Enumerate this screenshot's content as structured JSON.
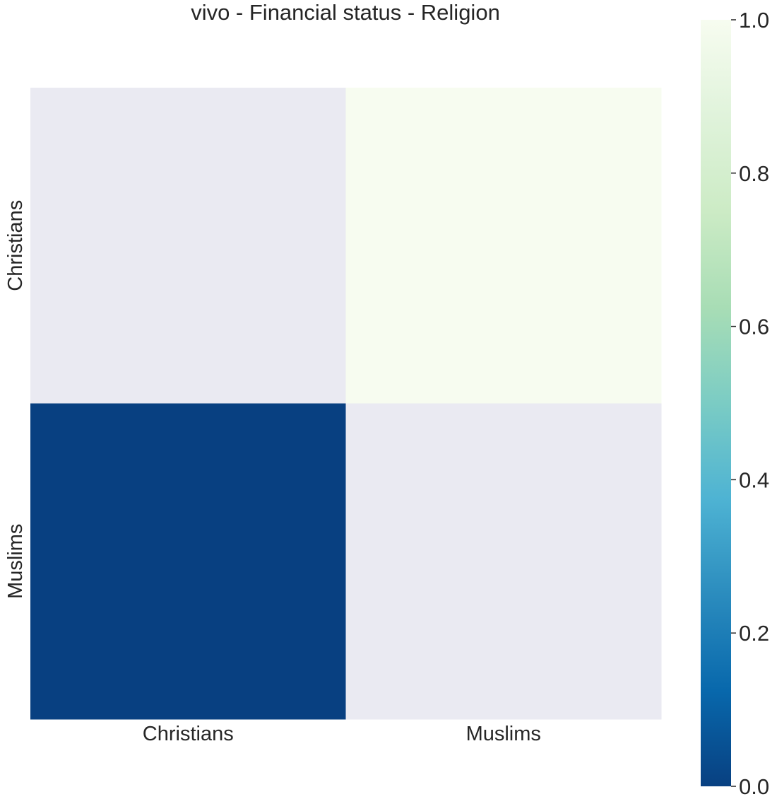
{
  "chart_data": {
    "type": "heatmap",
    "title": "vivo - Financial status - Religion",
    "x_categories": [
      "Christians",
      "Muslims"
    ],
    "y_categories": [
      "Christians",
      "Muslims"
    ],
    "values": [
      [
        null,
        1.0
      ],
      [
        0.0,
        null
      ]
    ],
    "missing_color": "#eaeaf2",
    "colorbar": {
      "min": 0.0,
      "max": 1.0,
      "ticks": [
        0.0,
        0.2,
        0.4,
        0.6,
        0.8,
        1.0
      ],
      "tick_labels": [
        "0.0",
        "0.2",
        "0.4",
        "0.6",
        "0.8",
        "1.0"
      ],
      "colormap": "GnBu_r",
      "colors": [
        "#084081",
        "#0868ac",
        "#2b8cbe",
        "#4eb3d3",
        "#7bccc4",
        "#a8ddb5",
        "#ccebc5",
        "#e0f3db",
        "#f7fcf0"
      ]
    }
  }
}
